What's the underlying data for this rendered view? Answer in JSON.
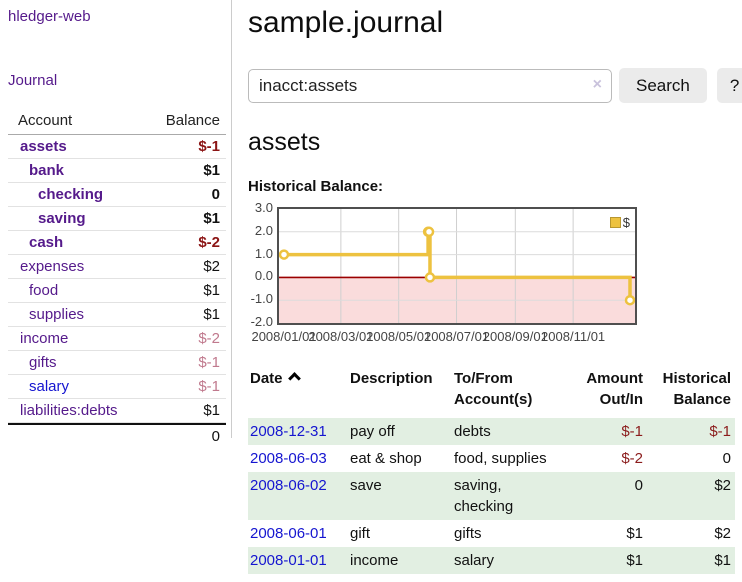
{
  "brand": "hledger-web",
  "sidebar": {
    "journal_link": "Journal",
    "table": {
      "account_header": "Account",
      "balance_header": "Balance",
      "rows": [
        {
          "name": "assets",
          "balance": "$-1",
          "indent": 0,
          "bold": true,
          "neg": "strong"
        },
        {
          "name": "bank",
          "balance": "$1",
          "indent": 1,
          "bold": true
        },
        {
          "name": "checking",
          "balance": "0",
          "indent": 2,
          "bold": true
        },
        {
          "name": "saving",
          "balance": "$1",
          "indent": 2,
          "bold": true
        },
        {
          "name": "cash",
          "balance": "$-2",
          "indent": 1,
          "bold": true,
          "neg": "strong"
        },
        {
          "name": "expenses",
          "balance": "$2",
          "indent": 0
        },
        {
          "name": "food",
          "balance": "$1",
          "indent": 1
        },
        {
          "name": "supplies",
          "balance": "$1",
          "indent": 1
        },
        {
          "name": "income",
          "balance": "$-2",
          "indent": 0,
          "neg": "soft"
        },
        {
          "name": "gifts",
          "balance": "$-1",
          "indent": 1,
          "neg": "soft"
        },
        {
          "name": "salary",
          "balance": "$-1",
          "indent": 1,
          "neg": "soft",
          "blue": true
        },
        {
          "name": "liabilities:debts",
          "balance": "$1",
          "indent": 0
        }
      ],
      "total": "0"
    }
  },
  "header": {
    "title": "sample.journal"
  },
  "search": {
    "value": "inacct:assets",
    "clear_icon": "×",
    "button_label": "Search",
    "help_label": "?"
  },
  "account_page": {
    "heading": "assets",
    "chart_label": "Historical Balance:"
  },
  "chart_data": {
    "type": "line",
    "title": "Historical Balance:",
    "step": true,
    "legend": "$",
    "legend_position": "top-right",
    "grid": true,
    "ylim": [
      -2.0,
      3.0
    ],
    "yticks": [
      "3.0",
      "2.0",
      "1.0",
      "0.0",
      "-1.0",
      "-2.0"
    ],
    "xticks": [
      "2008/01/01",
      "2008/03/01",
      "2008/05/01",
      "2008/07/01",
      "2008/09/01",
      "2008/11/01"
    ],
    "series": [
      {
        "name": "$",
        "points": [
          {
            "date": "2008-01-01",
            "value": 1
          },
          {
            "date": "2008-06-01",
            "value": 2
          },
          {
            "date": "2008-06-02",
            "value": 2
          },
          {
            "date": "2008-06-03",
            "value": 0
          },
          {
            "date": "2008-12-31",
            "value": -1
          }
        ]
      }
    ],
    "colors": {
      "line": "#edc240",
      "marker_fill": "#ffffff",
      "negative_fill": "#fadcdc",
      "zero_line": "#9b0000",
      "grid": "#cfcfcf",
      "border": "#4f4f4f"
    }
  },
  "register": {
    "headers": {
      "date": "Date",
      "description": "Description",
      "account": "To/From Account(s)",
      "amount": "Amount Out/In",
      "balance": "Historical Balance"
    },
    "rows": [
      {
        "date": "2008-12-31",
        "description": "pay off",
        "account": "debts",
        "amount": "$-1",
        "balance": "$-1",
        "amount_neg": true,
        "balance_neg": true
      },
      {
        "date": "2008-06-03",
        "description": "eat & shop",
        "account": "food, supplies",
        "amount": "$-2",
        "balance": "0",
        "amount_neg": true
      },
      {
        "date": "2008-06-02",
        "description": "save",
        "account": "saving, checking",
        "amount": "0",
        "balance": "$2"
      },
      {
        "date": "2008-06-01",
        "description": "gift",
        "account": "gifts",
        "amount": "$1",
        "balance": "$2"
      },
      {
        "date": "2008-01-01",
        "description": "income",
        "account": "salary",
        "amount": "$1",
        "balance": "$1"
      }
    ]
  }
}
